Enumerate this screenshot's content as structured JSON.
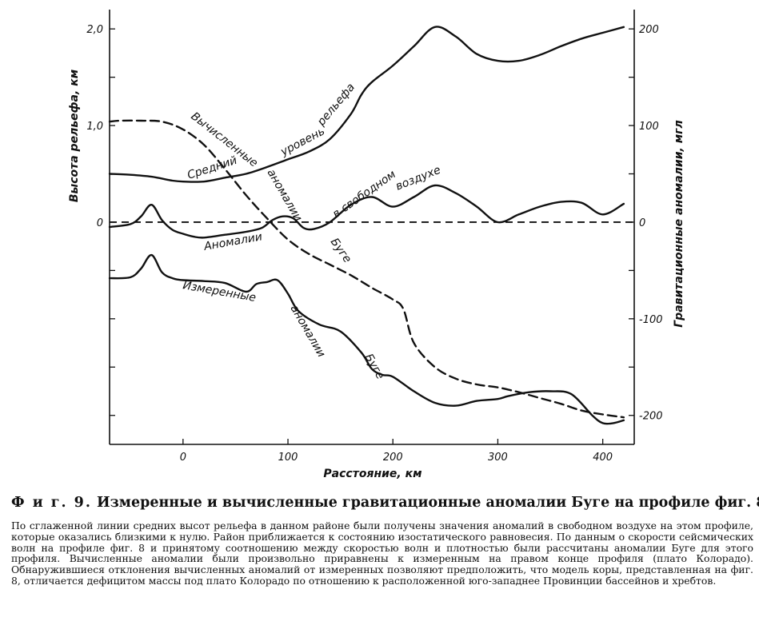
{
  "chart_data": {
    "type": "line",
    "xlabel": "Расстояние, км",
    "ylabel_left": "Высота рельефа, км",
    "ylabel_right": "Гравитационные аномалии, мгл",
    "x_ticks": [
      "0",
      "100",
      "200",
      "300",
      "400"
    ],
    "y_left_ticks": [
      "0",
      "1,0",
      "2,0"
    ],
    "y_right_ticks": [
      "-200",
      "-100",
      "0",
      "100",
      "200"
    ],
    "xlim": [
      -70,
      430
    ],
    "y_left_lim": [
      -2.3,
      2.2
    ],
    "y_right_lim": [
      -230,
      220
    ],
    "grid": false,
    "series": [
      {
        "name": "Средний уровень рельефа",
        "axis": "left",
        "style": "solid",
        "x": [
          -70,
          -50,
          -30,
          -10,
          0,
          20,
          40,
          60,
          80,
          100,
          120,
          140,
          160,
          170,
          180,
          200,
          220,
          240,
          260,
          280,
          300,
          320,
          340,
          360,
          380,
          400,
          420
        ],
        "y": [
          0.5,
          0.49,
          0.47,
          0.43,
          0.42,
          0.42,
          0.46,
          0.5,
          0.57,
          0.65,
          0.73,
          0.86,
          1.12,
          1.32,
          1.45,
          1.62,
          1.82,
          2.02,
          1.92,
          1.74,
          1.67,
          1.67,
          1.73,
          1.82,
          1.9,
          1.96,
          2.02
        ]
      },
      {
        "name": "аномалии в свободном воздухе",
        "axis": "right",
        "style": "solid",
        "x": [
          -70,
          -50,
          -40,
          -30,
          -20,
          -10,
          0,
          10,
          20,
          40,
          60,
          75,
          85,
          95,
          105,
          115,
          125,
          140,
          160,
          180,
          200,
          220,
          240,
          260,
          280,
          300,
          320,
          340,
          360,
          380,
          400,
          420
        ],
        "y": [
          -5,
          -2,
          6,
          18,
          2,
          -8,
          -12,
          -15,
          -16,
          -13,
          -10,
          -6,
          2,
          6,
          4,
          -6,
          -7,
          0,
          18,
          26,
          16,
          26,
          38,
          30,
          16,
          0,
          8,
          16,
          21,
          20,
          8,
          19
        ]
      },
      {
        "name": "Вычисленные аномалии Буге",
        "axis": "right",
        "style": "dashed",
        "x": [
          -70,
          -60,
          -40,
          -20,
          0,
          20,
          40,
          60,
          80,
          100,
          120,
          140,
          160,
          180,
          200,
          210,
          220,
          240,
          260,
          280,
          300,
          320,
          340,
          360,
          380,
          400,
          420
        ],
        "y": [
          104,
          105,
          105,
          104,
          96,
          80,
          55,
          28,
          4,
          -18,
          -33,
          -44,
          -55,
          -68,
          -80,
          -90,
          -125,
          -150,
          -162,
          -168,
          -171,
          -176,
          -182,
          -188,
          -195,
          -199,
          -202
        ]
      },
      {
        "name": "Измеренные аномалии Буге",
        "axis": "right",
        "style": "solid",
        "x": [
          -70,
          -50,
          -40,
          -30,
          -20,
          -10,
          0,
          20,
          40,
          60,
          70,
          80,
          90,
          100,
          110,
          130,
          150,
          170,
          180,
          190,
          200,
          220,
          240,
          260,
          280,
          300,
          310,
          330,
          350,
          370,
          390,
          400,
          410,
          420
        ],
        "y": [
          -58,
          -57,
          -48,
          -34,
          -52,
          -58,
          -60,
          -61,
          -63,
          -72,
          -64,
          -62,
          -60,
          -74,
          -92,
          -106,
          -113,
          -135,
          -152,
          -158,
          -160,
          -175,
          -187,
          -190,
          -185,
          -183,
          -180,
          -176,
          -175,
          -178,
          -200,
          -208,
          -208,
          -205
        ]
      }
    ],
    "annotations": {
      "relief_1": "Средний",
      "relief_2": "уровень",
      "relief_3": "рельефа",
      "free_air_1": "в свободном",
      "free_air_2": "воздухе",
      "free_air_3": "Аномалии",
      "calc_1": "Вычисленные",
      "calc_2": "аномалии",
      "calc_3": "Буге",
      "meas_1": "Измеренные",
      "meas_2": "аномалии",
      "meas_3": "Буге"
    }
  },
  "caption": {
    "fig_label": "Ф и г. 9.",
    "title": "Измеренные и вычисленные гравитационные аномалии Буге на профиле фиг. 8.",
    "body": "По сглаженной линии средних высот рельефа в данном районе были получены значения аномалий в свободном воздухе на этом профиле, которые оказались близкими к нулю. Район приближается к состоянию изостатического равновесия. По данным о скорости сейсмических волн на профиле фиг. 8 и принятому соотношению между скоростью волн и плотностью были рассчитаны аномалии Буге для этого профиля. Вычисленные аномалии были произвольно приравнены к измеренным на правом конце профиля (плато Колорадо). Обнаружившиеся отклонения вычисленных аномалий от измеренных позволяют предположить, что модель коры, представленная на фиг. 8, отличается дефицитом массы под плато Колорадо по отношению к расположенной юго-западнее Провинции бассейнов и хребтов."
  }
}
